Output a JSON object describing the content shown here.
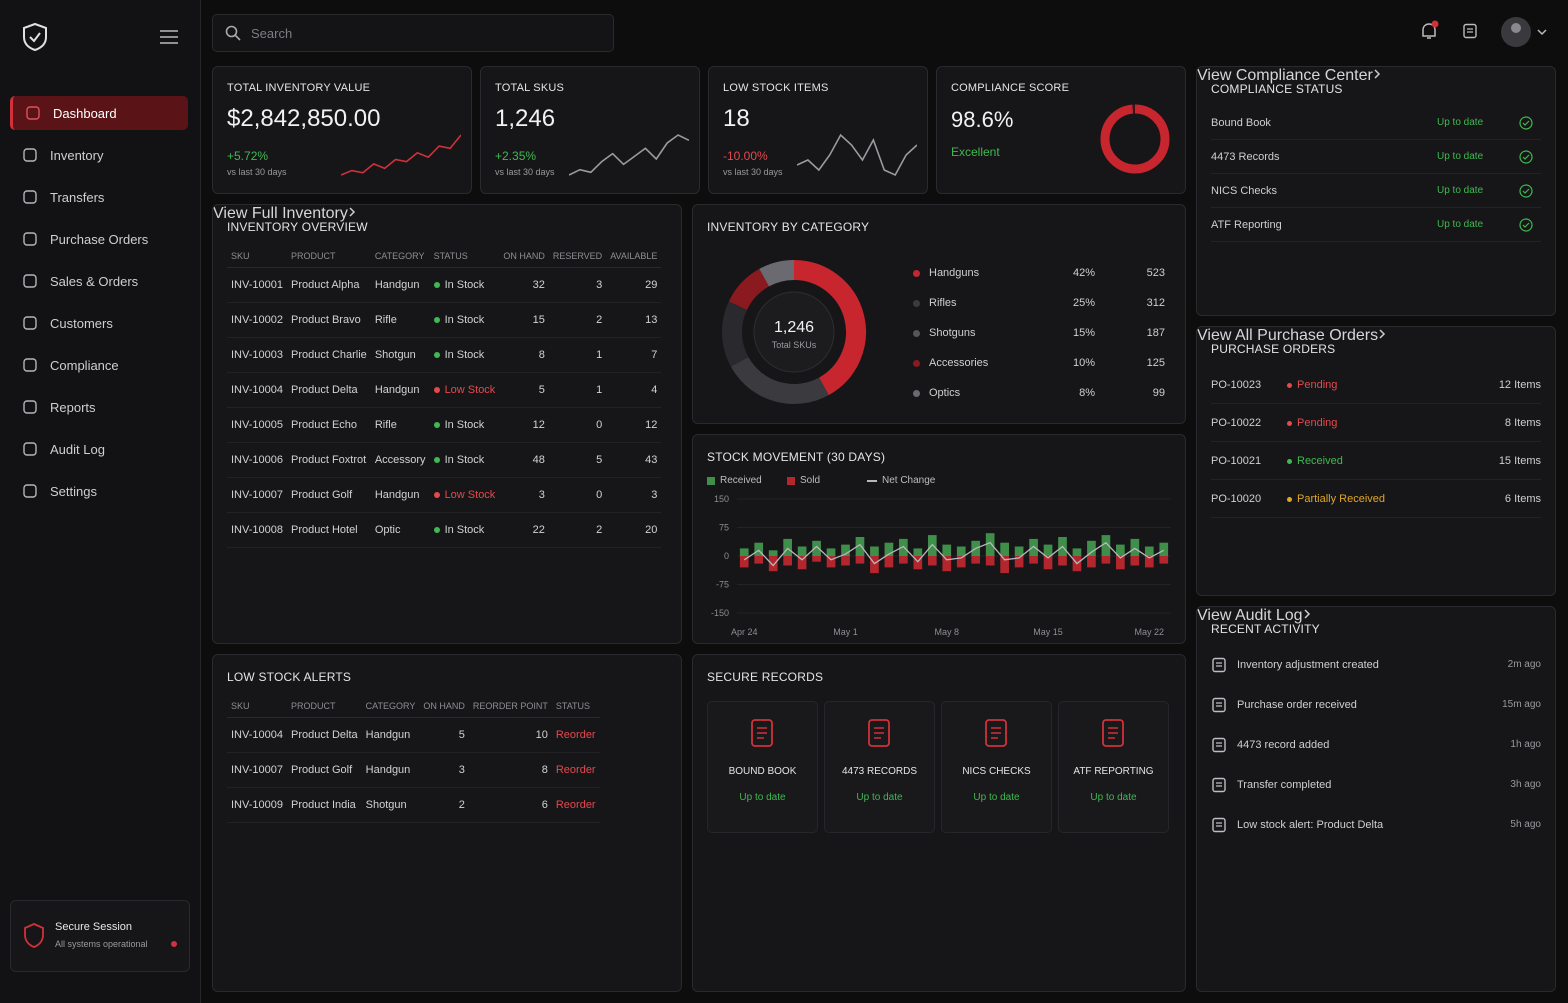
{
  "sidebar": {
    "nav": [
      "Dashboard",
      "Inventory",
      "Transfers",
      "Purchase Orders",
      "Sales & Orders",
      "Customers",
      "Compliance",
      "Reports",
      "Audit Log",
      "Settings"
    ],
    "session": {
      "title": "Secure Session",
      "status": "All systems operational"
    }
  },
  "search": {
    "placeholder": "Search"
  },
  "status_colors": {
    "In Stock": "#3fb950",
    "Low Stock": "#e5484d",
    "Pending": "#e5484d",
    "Received": "#3fb950",
    "Partially Received": "#e0a526",
    "Up to date": "#3fb950",
    "Reorder": "#e5484d"
  },
  "kpis": [
    {
      "title": "TOTAL INVENTORY VALUE",
      "value": "$2,842,850.00",
      "change": "+5.72%",
      "period": "vs last 30 days",
      "color": "#d0313a",
      "trend": [
        12,
        14,
        13,
        17,
        15,
        19,
        18,
        22,
        20,
        25,
        24,
        30
      ]
    },
    {
      "title": "TOTAL SKUS",
      "value": "1,246",
      "change": "+2.35%",
      "period": "vs last 30 days",
      "color": "#9a9a9e",
      "trend": [
        10,
        12,
        11,
        15,
        18,
        14,
        17,
        20,
        16,
        22,
        25,
        23
      ]
    },
    {
      "title": "LOW STOCK ITEMS",
      "value": "18",
      "change": "-10.00%",
      "period": "vs last 30 days",
      "color": "#9a9a9e",
      "trend": [
        14,
        15,
        13,
        16,
        20,
        18,
        15,
        19,
        13,
        12,
        16,
        18
      ]
    }
  ],
  "compliance_score": {
    "title": "COMPLIANCE SCORE",
    "score": 98.6,
    "score_label": "98.6%",
    "rating": "Excellent"
  },
  "compliance_status": {
    "title": "COMPLIANCE STATUS",
    "items": [
      {
        "name": "Bound Book",
        "status": "Up to date"
      },
      {
        "name": "4473 Records",
        "status": "Up to date"
      },
      {
        "name": "NICS Checks",
        "status": "Up to date"
      },
      {
        "name": "ATF Reporting",
        "status": "Up to date"
      }
    ],
    "link": "View Compliance Center"
  },
  "inventory_overview": {
    "title": "INVENTORY OVERVIEW",
    "columns": [
      "SKU",
      "PRODUCT",
      "CATEGORY",
      "STATUS",
      "ON HAND",
      "RESERVED",
      "AVAILABLE"
    ],
    "rows": [
      [
        "INV-10001",
        "Product Alpha",
        "Handgun",
        "In Stock",
        32,
        3,
        29
      ],
      [
        "INV-10002",
        "Product Bravo",
        "Rifle",
        "In Stock",
        15,
        2,
        13
      ],
      [
        "INV-10003",
        "Product Charlie",
        "Shotgun",
        "In Stock",
        8,
        1,
        7
      ],
      [
        "INV-10004",
        "Product Delta",
        "Handgun",
        "Low Stock",
        5,
        1,
        4
      ],
      [
        "INV-10005",
        "Product Echo",
        "Rifle",
        "In Stock",
        12,
        0,
        12
      ],
      [
        "INV-10006",
        "Product Foxtrot",
        "Accessory",
        "In Stock",
        48,
        5,
        43
      ],
      [
        "INV-10007",
        "Product Golf",
        "Handgun",
        "Low Stock",
        3,
        0,
        3
      ],
      [
        "INV-10008",
        "Product Hotel",
        "Optic",
        "In Stock",
        22,
        2,
        20
      ]
    ],
    "link": "View Full Inventory"
  },
  "inventory_by_category": {
    "title": "INVENTORY BY CATEGORY",
    "center_value": "1,246",
    "center_label": "Total SKUs",
    "items": [
      {
        "name": "Handguns",
        "color": "#c8262e",
        "percent": 42,
        "percent_label": "42%",
        "count": 523
      },
      {
        "name": "Rifles",
        "color": "#3a3a3f",
        "percent": 25,
        "percent_label": "25%",
        "count": 312
      },
      {
        "name": "Shotguns",
        "color": "#2a2a2e",
        "percent": 15,
        "percent_label": "15%",
        "count": 187
      },
      {
        "name": "Accessories",
        "color": "#8a1a20",
        "percent": 10,
        "percent_label": "10%",
        "count": 125
      },
      {
        "name": "Optics",
        "color": "#6a6a70",
        "percent": 8,
        "percent_label": "8%",
        "count": 99
      }
    ]
  },
  "stock_movement": {
    "title": "STOCK MOVEMENT (30 DAYS)",
    "categories": [
      "Apr 24",
      null,
      null,
      null,
      null,
      null,
      null,
      "May 1",
      null,
      null,
      null,
      null,
      null,
      null,
      "May 8",
      null,
      null,
      null,
      null,
      null,
      null,
      "May 15",
      null,
      null,
      null,
      null,
      null,
      null,
      "May 22",
      null
    ],
    "ylim": [
      -150,
      150
    ],
    "yticks": [
      150,
      75,
      0,
      -75,
      -150
    ],
    "series": [
      {
        "name": "Received",
        "type": "bar",
        "color": "#3f8f4a",
        "values": [
          20,
          35,
          15,
          45,
          25,
          40,
          20,
          30,
          50,
          25,
          35,
          45,
          20,
          55,
          30,
          25,
          40,
          60,
          35,
          25,
          45,
          30,
          50,
          20,
          40,
          55,
          30,
          45,
          25,
          35
        ]
      },
      {
        "name": "Sold",
        "type": "bar",
        "color": "#b3262d",
        "values": [
          -30,
          -20,
          -40,
          -25,
          -35,
          -15,
          -30,
          -25,
          -20,
          -45,
          -30,
          -20,
          -35,
          -25,
          -40,
          -30,
          -20,
          -25,
          -45,
          -30,
          -20,
          -35,
          -25,
          -40,
          -30,
          -20,
          -35,
          -25,
          -30,
          -20
        ]
      },
      {
        "name": "Net Change",
        "type": "line",
        "color": "#b8b8bc",
        "values": [
          -10,
          15,
          -25,
          20,
          -10,
          25,
          -10,
          5,
          30,
          -20,
          5,
          25,
          -15,
          30,
          -10,
          -5,
          20,
          35,
          -10,
          -5,
          25,
          -5,
          25,
          -20,
          10,
          35,
          -5,
          20,
          -5,
          15
        ]
      }
    ]
  },
  "purchase_orders": {
    "title": "PURCHASE ORDERS",
    "rows": [
      {
        "id": "PO-10023",
        "status": "Pending",
        "items": "12 Items"
      },
      {
        "id": "PO-10022",
        "status": "Pending",
        "items": "8 Items"
      },
      {
        "id": "PO-10021",
        "status": "Received",
        "items": "15 Items"
      },
      {
        "id": "PO-10020",
        "status": "Partially Received",
        "items": "6 Items"
      }
    ],
    "link": "View All Purchase Orders"
  },
  "recent_activity": {
    "title": "RECENT ACTIVITY",
    "items": [
      {
        "text": "Inventory adjustment created",
        "time": "2m ago"
      },
      {
        "text": "Purchase order received",
        "time": "15m ago"
      },
      {
        "text": "4473 record added",
        "time": "1h ago"
      },
      {
        "text": "Transfer completed",
        "time": "3h ago"
      },
      {
        "text": "Low stock alert: Product Delta",
        "time": "5h ago"
      }
    ],
    "link": "View Audit Log"
  },
  "low_stock_alerts": {
    "title": "LOW STOCK ALERTS",
    "columns": [
      "SKU",
      "PRODUCT",
      "CATEGORY",
      "ON HAND",
      "REORDER POINT",
      "STATUS"
    ],
    "rows": [
      [
        "INV-10004",
        "Product Delta",
        "Handgun",
        5,
        10,
        "Reorder"
      ],
      [
        "INV-10007",
        "Product Golf",
        "Handgun",
        3,
        8,
        "Reorder"
      ],
      [
        "INV-10009",
        "Product India",
        "Shotgun",
        2,
        6,
        "Reorder"
      ]
    ]
  },
  "secure_records": {
    "title": "SECURE RECORDS",
    "items": [
      {
        "name": "BOUND BOOK",
        "status": "Up to date"
      },
      {
        "name": "4473 RECORDS",
        "status": "Up to date"
      },
      {
        "name": "NICS CHECKS",
        "status": "Up to date"
      },
      {
        "name": "ATF REPORTING",
        "status": "Up to date"
      }
    ]
  }
}
